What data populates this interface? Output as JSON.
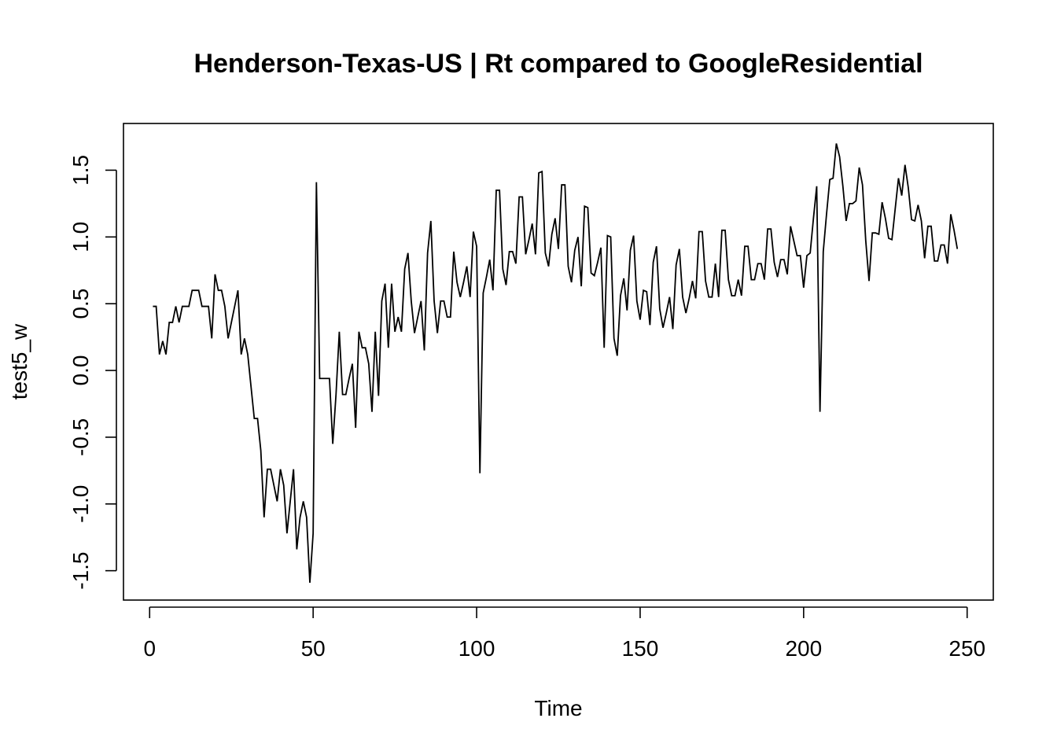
{
  "chart_data": {
    "type": "line",
    "title": "Henderson-Texas-US | Rt compared to GoogleResidential",
    "xlabel": "Time",
    "ylabel": "test5_w",
    "xlim": [
      -8,
      258
    ],
    "ylim": [
      -1.72,
      1.85
    ],
    "xticks": [
      0,
      50,
      100,
      150,
      200,
      250
    ],
    "yticks": [
      -1.5,
      -1.0,
      -0.5,
      0.0,
      0.5,
      1.0,
      1.5
    ],
    "ytick_labels": [
      "-1.5",
      "-1.0",
      "-0.5",
      "0.0",
      "0.5",
      "1.0",
      "1.5"
    ],
    "grid": false,
    "series": [
      {
        "x_start": 1,
        "values": [
          0.48,
          0.48,
          0.12,
          0.22,
          0.12,
          0.36,
          0.36,
          0.48,
          0.36,
          0.48,
          0.48,
          0.48,
          0.6,
          0.6,
          0.6,
          0.48,
          0.48,
          0.48,
          0.24,
          0.72,
          0.6,
          0.6,
          0.48,
          0.24,
          0.36,
          0.48,
          0.6,
          0.12,
          0.24,
          0.12,
          -0.12,
          -0.36,
          -0.36,
          -0.6,
          -1.1,
          -0.74,
          -0.74,
          -0.86,
          -0.98,
          -0.74,
          -0.86,
          -1.22,
          -0.98,
          -0.74,
          -1.34,
          -1.1,
          -0.98,
          -1.1,
          -1.59,
          -1.22,
          1.41,
          -0.06,
          -0.06,
          -0.06,
          -0.06,
          -0.55,
          -0.18,
          0.29,
          -0.18,
          -0.18,
          -0.06,
          0.05,
          -0.43,
          0.29,
          0.17,
          0.17,
          0.05,
          -0.31,
          0.29,
          -0.19,
          0.52,
          0.65,
          0.17,
          0.65,
          0.29,
          0.4,
          0.29,
          0.76,
          0.88,
          0.52,
          0.28,
          0.4,
          0.52,
          0.15,
          0.88,
          1.12,
          0.52,
          0.28,
          0.52,
          0.52,
          0.4,
          0.4,
          0.89,
          0.66,
          0.55,
          0.66,
          0.78,
          0.55,
          1.04,
          0.93,
          -0.77,
          0.58,
          0.7,
          0.83,
          0.6,
          1.35,
          1.35,
          0.76,
          0.64,
          0.89,
          0.89,
          0.8,
          1.3,
          1.3,
          0.87,
          0.98,
          1.1,
          0.87,
          1.48,
          1.49,
          0.88,
          0.78,
          1.02,
          1.14,
          0.91,
          1.39,
          1.39,
          0.78,
          0.66,
          0.9,
          1.0,
          0.63,
          1.23,
          1.22,
          0.73,
          0.71,
          0.81,
          0.92,
          0.17,
          1.01,
          1.0,
          0.24,
          0.11,
          0.56,
          0.69,
          0.45,
          0.9,
          1.01,
          0.52,
          0.38,
          0.6,
          0.59,
          0.34,
          0.81,
          0.93,
          0.46,
          0.32,
          0.43,
          0.55,
          0.31,
          0.79,
          0.91,
          0.55,
          0.43,
          0.54,
          0.67,
          0.54,
          1.04,
          1.04,
          0.67,
          0.55,
          0.55,
          0.8,
          0.55,
          1.05,
          1.05,
          0.68,
          0.56,
          0.56,
          0.68,
          0.56,
          0.93,
          0.93,
          0.68,
          0.68,
          0.8,
          0.8,
          0.68,
          1.06,
          1.06,
          0.81,
          0.7,
          0.83,
          0.83,
          0.72,
          1.08,
          0.97,
          0.86,
          0.86,
          0.62,
          0.86,
          0.88,
          1.14,
          1.38,
          -0.31,
          0.89,
          1.17,
          1.43,
          1.44,
          1.7,
          1.6,
          1.38,
          1.12,
          1.25,
          1.25,
          1.27,
          1.52,
          1.39,
          0.97,
          0.67,
          1.03,
          1.03,
          1.02,
          1.26,
          1.14,
          0.99,
          0.98,
          1.21,
          1.44,
          1.31,
          1.54,
          1.37,
          1.13,
          1.12,
          1.24,
          1.12,
          0.84,
          1.08,
          1.08,
          0.82,
          0.82,
          0.94,
          0.94,
          0.8,
          1.17,
          1.05,
          0.91
        ]
      }
    ]
  }
}
